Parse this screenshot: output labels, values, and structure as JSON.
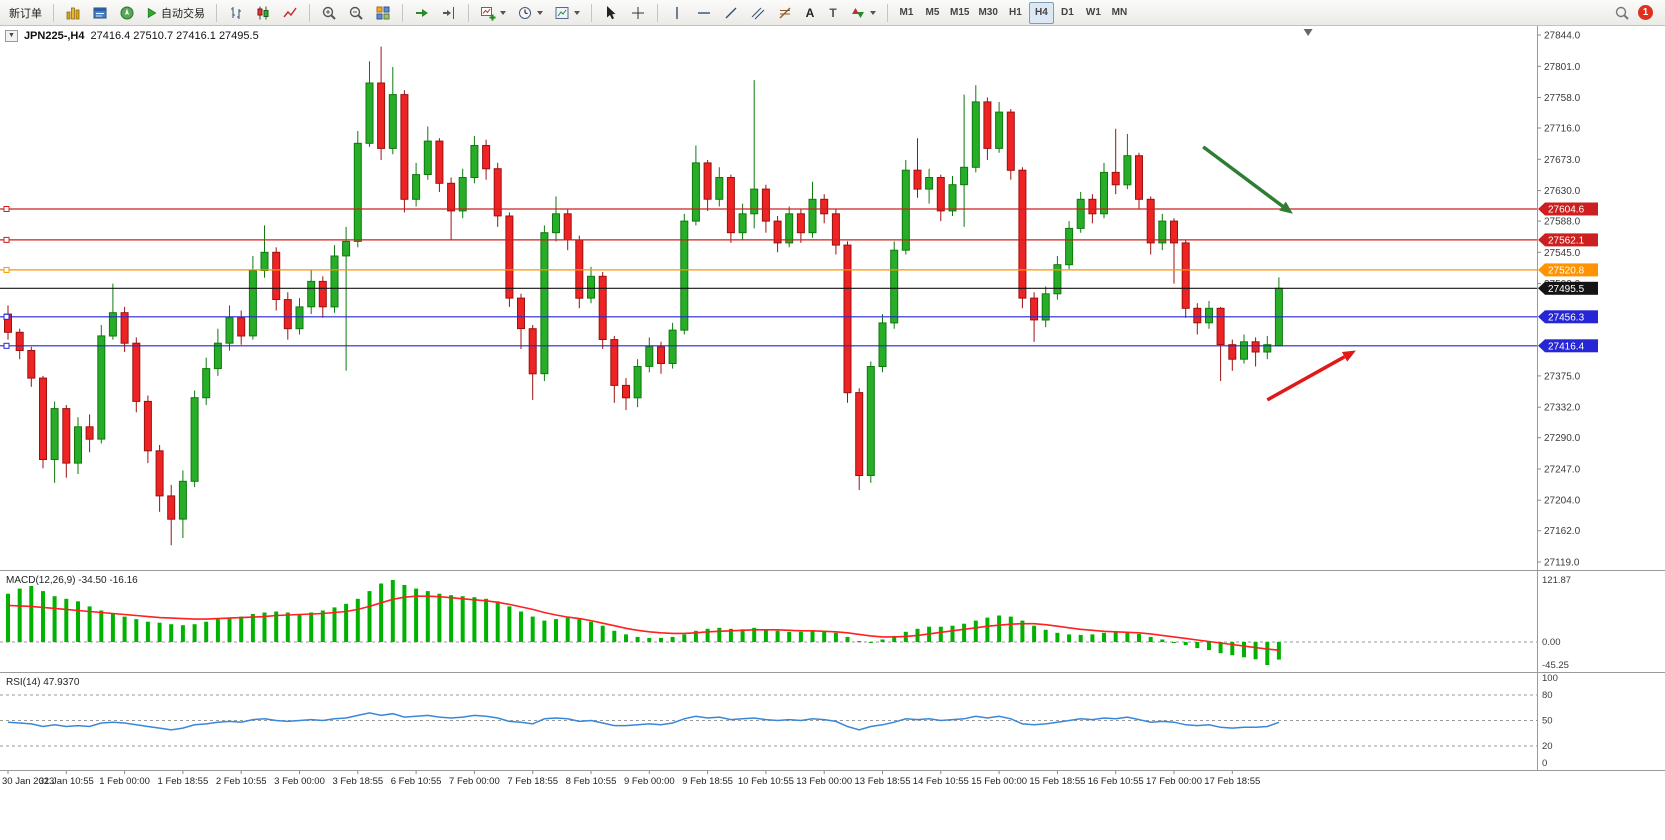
{
  "toolbar": {
    "new_order": "新订单",
    "autotrading": "自动交易",
    "text_tool": "A",
    "label_tool": "T",
    "timeframes": [
      "M1",
      "M5",
      "M15",
      "M30",
      "H1",
      "H4",
      "D1",
      "W1",
      "MN"
    ],
    "active_timeframe": "H4",
    "notification_count": "1"
  },
  "chart": {
    "title": "JPN225-,H4",
    "ohlc_text": "27416.4 27510.7 27416.1 27495.5"
  },
  "chart_data": {
    "type": "candlestick",
    "symbol": "JPN225-",
    "timeframe": "H4",
    "price_axis": {
      "top": 27844.0,
      "bottom": 27119.0,
      "ticks": [
        27844.0,
        27801.0,
        27758.0,
        27716.0,
        27673.0,
        27630.0,
        27588.0,
        27545.0,
        27502.0,
        27375.0,
        27332.0,
        27290.0,
        27247.0,
        27204.0,
        27162.0,
        27119.0
      ]
    },
    "time_labels": [
      "30 Jan 2023",
      "31 Jan 10:55",
      "1 Feb 00:00",
      "1 Feb 18:55",
      "2 Feb 10:55",
      "3 Feb 00:00",
      "3 Feb 18:55",
      "6 Feb 10:55",
      "7 Feb 00:00",
      "7 Feb 18:55",
      "8 Feb 10:55",
      "9 Feb 00:00",
      "9 Feb 18:55",
      "10 Feb 10:55",
      "13 Feb 00:00",
      "13 Feb 18:55",
      "14 Feb 10:55",
      "15 Feb 00:00",
      "15 Feb 18:55",
      "16 Feb 10:55",
      "17 Feb 00:00",
      "17 Feb 18:55"
    ],
    "candles": [
      [
        27460,
        27472,
        27425,
        27435
      ],
      [
        27435,
        27440,
        27398,
        27410
      ],
      [
        27410,
        27415,
        27360,
        27372
      ],
      [
        27372,
        27375,
        27248,
        27260
      ],
      [
        27260,
        27340,
        27228,
        27330
      ],
      [
        27330,
        27335,
        27235,
        27255
      ],
      [
        27255,
        27318,
        27240,
        27305
      ],
      [
        27305,
        27322,
        27270,
        27288
      ],
      [
        27288,
        27445,
        27282,
        27430
      ],
      [
        27430,
        27502,
        27425,
        27462
      ],
      [
        27462,
        27470,
        27408,
        27420
      ],
      [
        27420,
        27428,
        27325,
        27340
      ],
      [
        27340,
        27348,
        27255,
        27272
      ],
      [
        27272,
        27280,
        27188,
        27210
      ],
      [
        27210,
        27225,
        27142,
        27178
      ],
      [
        27178,
        27245,
        27152,
        27230
      ],
      [
        27230,
        27355,
        27222,
        27345
      ],
      [
        27345,
        27400,
        27335,
        27385
      ],
      [
        27385,
        27440,
        27375,
        27420
      ],
      [
        27420,
        27472,
        27410,
        27455
      ],
      [
        27455,
        27465,
        27418,
        27430
      ],
      [
        27430,
        27540,
        27425,
        27520
      ],
      [
        27520,
        27582,
        27510,
        27545
      ],
      [
        27545,
        27552,
        27465,
        27480
      ],
      [
        27480,
        27490,
        27425,
        27440
      ],
      [
        27440,
        27482,
        27432,
        27470
      ],
      [
        27470,
        27520,
        27460,
        27505
      ],
      [
        27505,
        27512,
        27455,
        27470
      ],
      [
        27470,
        27555,
        27462,
        27540
      ],
      [
        27540,
        27580,
        27382,
        27560
      ],
      [
        27560,
        27712,
        27552,
        27695
      ],
      [
        27695,
        27808,
        27690,
        27778
      ],
      [
        27778,
        27828,
        27672,
        27688
      ],
      [
        27688,
        27800,
        27680,
        27762
      ],
      [
        27762,
        27768,
        27600,
        27618
      ],
      [
        27618,
        27668,
        27608,
        27652
      ],
      [
        27652,
        27718,
        27645,
        27698
      ],
      [
        27698,
        27702,
        27628,
        27640
      ],
      [
        27640,
        27648,
        27562,
        27602
      ],
      [
        27602,
        27660,
        27592,
        27648
      ],
      [
        27648,
        27705,
        27640,
        27692
      ],
      [
        27692,
        27700,
        27645,
        27660
      ],
      [
        27660,
        27668,
        27580,
        27595
      ],
      [
        27595,
        27600,
        27470,
        27482
      ],
      [
        27482,
        27488,
        27412,
        27440
      ],
      [
        27440,
        27445,
        27342,
        27378
      ],
      [
        27378,
        27582,
        27368,
        27572
      ],
      [
        27572,
        27622,
        27560,
        27598
      ],
      [
        27598,
        27605,
        27548,
        27562
      ],
      [
        27562,
        27568,
        27468,
        27482
      ],
      [
        27482,
        27525,
        27475,
        27512
      ],
      [
        27512,
        27518,
        27412,
        27425
      ],
      [
        27425,
        27430,
        27338,
        27362
      ],
      [
        27362,
        27372,
        27328,
        27345
      ],
      [
        27345,
        27398,
        27332,
        27388
      ],
      [
        27388,
        27428,
        27380,
        27415
      ],
      [
        27415,
        27422,
        27378,
        27392
      ],
      [
        27392,
        27448,
        27385,
        27438
      ],
      [
        27438,
        27598,
        27432,
        27588
      ],
      [
        27588,
        27692,
        27582,
        27668
      ],
      [
        27668,
        27672,
        27602,
        27618
      ],
      [
        27618,
        27662,
        27608,
        27648
      ],
      [
        27648,
        27652,
        27558,
        27572
      ],
      [
        27572,
        27612,
        27562,
        27598
      ],
      [
        27598,
        27782,
        27578,
        27632
      ],
      [
        27632,
        27638,
        27572,
        27588
      ],
      [
        27588,
        27595,
        27545,
        27558
      ],
      [
        27558,
        27608,
        27552,
        27598
      ],
      [
        27598,
        27605,
        27558,
        27572
      ],
      [
        27572,
        27642,
        27565,
        27618
      ],
      [
        27618,
        27625,
        27585,
        27598
      ],
      [
        27598,
        27605,
        27542,
        27555
      ],
      [
        27555,
        27560,
        27338,
        27352
      ],
      [
        27352,
        27358,
        27218,
        27238
      ],
      [
        27238,
        27395,
        27228,
        27388
      ],
      [
        27388,
        27460,
        27380,
        27448
      ],
      [
        27448,
        27560,
        27440,
        27548
      ],
      [
        27548,
        27672,
        27542,
        27658
      ],
      [
        27658,
        27702,
        27620,
        27632
      ],
      [
        27632,
        27660,
        27612,
        27648
      ],
      [
        27648,
        27652,
        27588,
        27602
      ],
      [
        27602,
        27650,
        27595,
        27638
      ],
      [
        27638,
        27762,
        27580,
        27662
      ],
      [
        27662,
        27775,
        27655,
        27752
      ],
      [
        27752,
        27758,
        27672,
        27688
      ],
      [
        27688,
        27752,
        27682,
        27738
      ],
      [
        27738,
        27742,
        27645,
        27658
      ],
      [
        27658,
        27662,
        27468,
        27482
      ],
      [
        27482,
        27490,
        27422,
        27452
      ],
      [
        27452,
        27498,
        27442,
        27488
      ],
      [
        27488,
        27540,
        27480,
        27528
      ],
      [
        27528,
        27588,
        27522,
        27578
      ],
      [
        27578,
        27628,
        27572,
        27618
      ],
      [
        27618,
        27625,
        27585,
        27598
      ],
      [
        27598,
        27668,
        27592,
        27655
      ],
      [
        27655,
        27715,
        27625,
        27638
      ],
      [
        27638,
        27708,
        27632,
        27678
      ],
      [
        27678,
        27682,
        27605,
        27618
      ],
      [
        27618,
        27622,
        27542,
        27558
      ],
      [
        27558,
        27598,
        27548,
        27588
      ],
      [
        27588,
        27592,
        27502,
        27558
      ],
      [
        27558,
        27562,
        27455,
        27468
      ],
      [
        27468,
        27475,
        27432,
        27448
      ],
      [
        27448,
        27478,
        27440,
        27468
      ],
      [
        27468,
        27470,
        27368,
        27418
      ],
      [
        27418,
        27425,
        27382,
        27398
      ],
      [
        27398,
        27432,
        27392,
        27422
      ],
      [
        27422,
        27428,
        27388,
        27408
      ],
      [
        27408,
        27430,
        27398,
        27418
      ],
      [
        27416.4,
        27510.7,
        27416.1,
        27495.5
      ]
    ],
    "hlines": [
      {
        "price": 27604.6,
        "label": "27604.6",
        "color": "#cc2020"
      },
      {
        "price": 27562.1,
        "label": "27562.1",
        "color": "#cc2020"
      },
      {
        "price": 27520.8,
        "label": "27520.8",
        "color": "#ff9300"
      },
      {
        "price": 27456.3,
        "label": "27456.3",
        "color": "#2626d4"
      },
      {
        "price": 27416.4,
        "label": "27416.4",
        "color": "#2626d4"
      }
    ],
    "current_price": {
      "price": 27495.5,
      "label": "27495.5",
      "color": "#141414"
    },
    "arrows": [
      {
        "from_i": 102.5,
        "from_price": 27690,
        "to_i": 110.2,
        "to_price": 27598,
        "color": "#2f7d32",
        "name": "green-down-arrow"
      },
      {
        "from_i": 108.0,
        "from_price": 27342,
        "to_i": 115.6,
        "to_price": 27410,
        "color": "#e01818",
        "name": "red-up-arrow"
      }
    ],
    "macd": {
      "label": "MACD(12,26,9) -34.50 -16.16",
      "axis": [
        "121.87",
        "0.00",
        "-45.25"
      ],
      "hist_color": "#00b300",
      "signal_color": "#ff2020",
      "histogram": [
        95,
        105,
        110,
        100,
        90,
        85,
        80,
        70,
        62,
        55,
        50,
        45,
        40,
        38,
        35,
        33,
        35,
        40,
        45,
        48,
        50,
        55,
        58,
        60,
        58,
        55,
        58,
        62,
        68,
        75,
        85,
        100,
        115,
        121.9,
        112,
        105,
        100,
        95,
        92,
        90,
        88,
        85,
        80,
        70,
        60,
        50,
        42,
        45,
        48,
        45,
        40,
        32,
        22,
        15,
        10,
        8,
        8,
        10,
        15,
        22,
        26,
        28,
        26,
        25,
        28,
        25,
        22,
        20,
        20,
        22,
        22,
        18,
        10,
        2,
        0,
        5,
        12,
        20,
        26,
        30,
        30,
        32,
        36,
        42,
        48,
        52,
        50,
        42,
        32,
        24,
        18,
        15,
        14,
        15,
        18,
        20,
        20,
        16,
        10,
        5,
        0,
        -6,
        -12,
        -16,
        -22,
        -26,
        -30,
        -34,
        -45.25,
        -34.5
      ],
      "signal": [
        72,
        71,
        70,
        68,
        66,
        64,
        62,
        60,
        58,
        56,
        54,
        52,
        50,
        48,
        47,
        46,
        45,
        45,
        46,
        47,
        48,
        49,
        50,
        52,
        53,
        54,
        55,
        56,
        58,
        60,
        64,
        70,
        77,
        84,
        88,
        90,
        90,
        89,
        87,
        85,
        83,
        81,
        78,
        74,
        69,
        64,
        58,
        53,
        49,
        46,
        42,
        37,
        32,
        27,
        23,
        20,
        18,
        17,
        17,
        18,
        20,
        21,
        22,
        23,
        24,
        24,
        24,
        23,
        22,
        22,
        21,
        20,
        18,
        15,
        12,
        10,
        10,
        11,
        13,
        16,
        19,
        22,
        25,
        28,
        31,
        33,
        35,
        36,
        36,
        34,
        31,
        28,
        25,
        23,
        21,
        20,
        19,
        18,
        16,
        13,
        10,
        7,
        4,
        1,
        -2,
        -5,
        -8,
        -11,
        -14,
        -16.16
      ]
    },
    "rsi": {
      "label": "RSI(14) 47.9370",
      "axis": [
        100,
        80,
        50,
        20,
        0
      ],
      "levels": [
        80,
        50,
        20
      ],
      "color": "#3a87d8",
      "values": [
        48,
        47,
        46,
        43,
        45,
        43,
        44,
        43,
        47,
        48,
        47,
        45,
        43,
        41,
        39,
        41,
        45,
        46,
        48,
        49,
        48,
        51,
        52,
        50,
        49,
        50,
        51,
        50,
        52,
        53,
        56,
        59,
        56,
        58,
        54,
        55,
        56,
        54,
        53,
        54,
        56,
        55,
        53,
        49,
        48,
        46,
        52,
        53,
        52,
        49,
        50,
        47,
        44,
        44,
        45,
        46,
        45,
        47,
        52,
        55,
        53,
        54,
        51,
        52,
        53,
        51,
        50,
        51,
        50,
        52,
        51,
        49,
        43,
        39,
        43,
        45,
        48,
        52,
        51,
        52,
        50,
        51,
        52,
        55,
        53,
        55,
        52,
        46,
        45,
        46,
        48,
        50,
        52,
        51,
        53,
        52,
        54,
        51,
        48,
        49,
        48,
        45,
        44,
        45,
        42,
        41,
        42,
        42,
        43,
        47.9
      ]
    },
    "colors": {
      "bull": "#27ad27",
      "bull_border": "#0e7a0e",
      "bear": "#ee2424",
      "bear_border": "#9c1010"
    },
    "shift_marker_index": 111.5
  }
}
